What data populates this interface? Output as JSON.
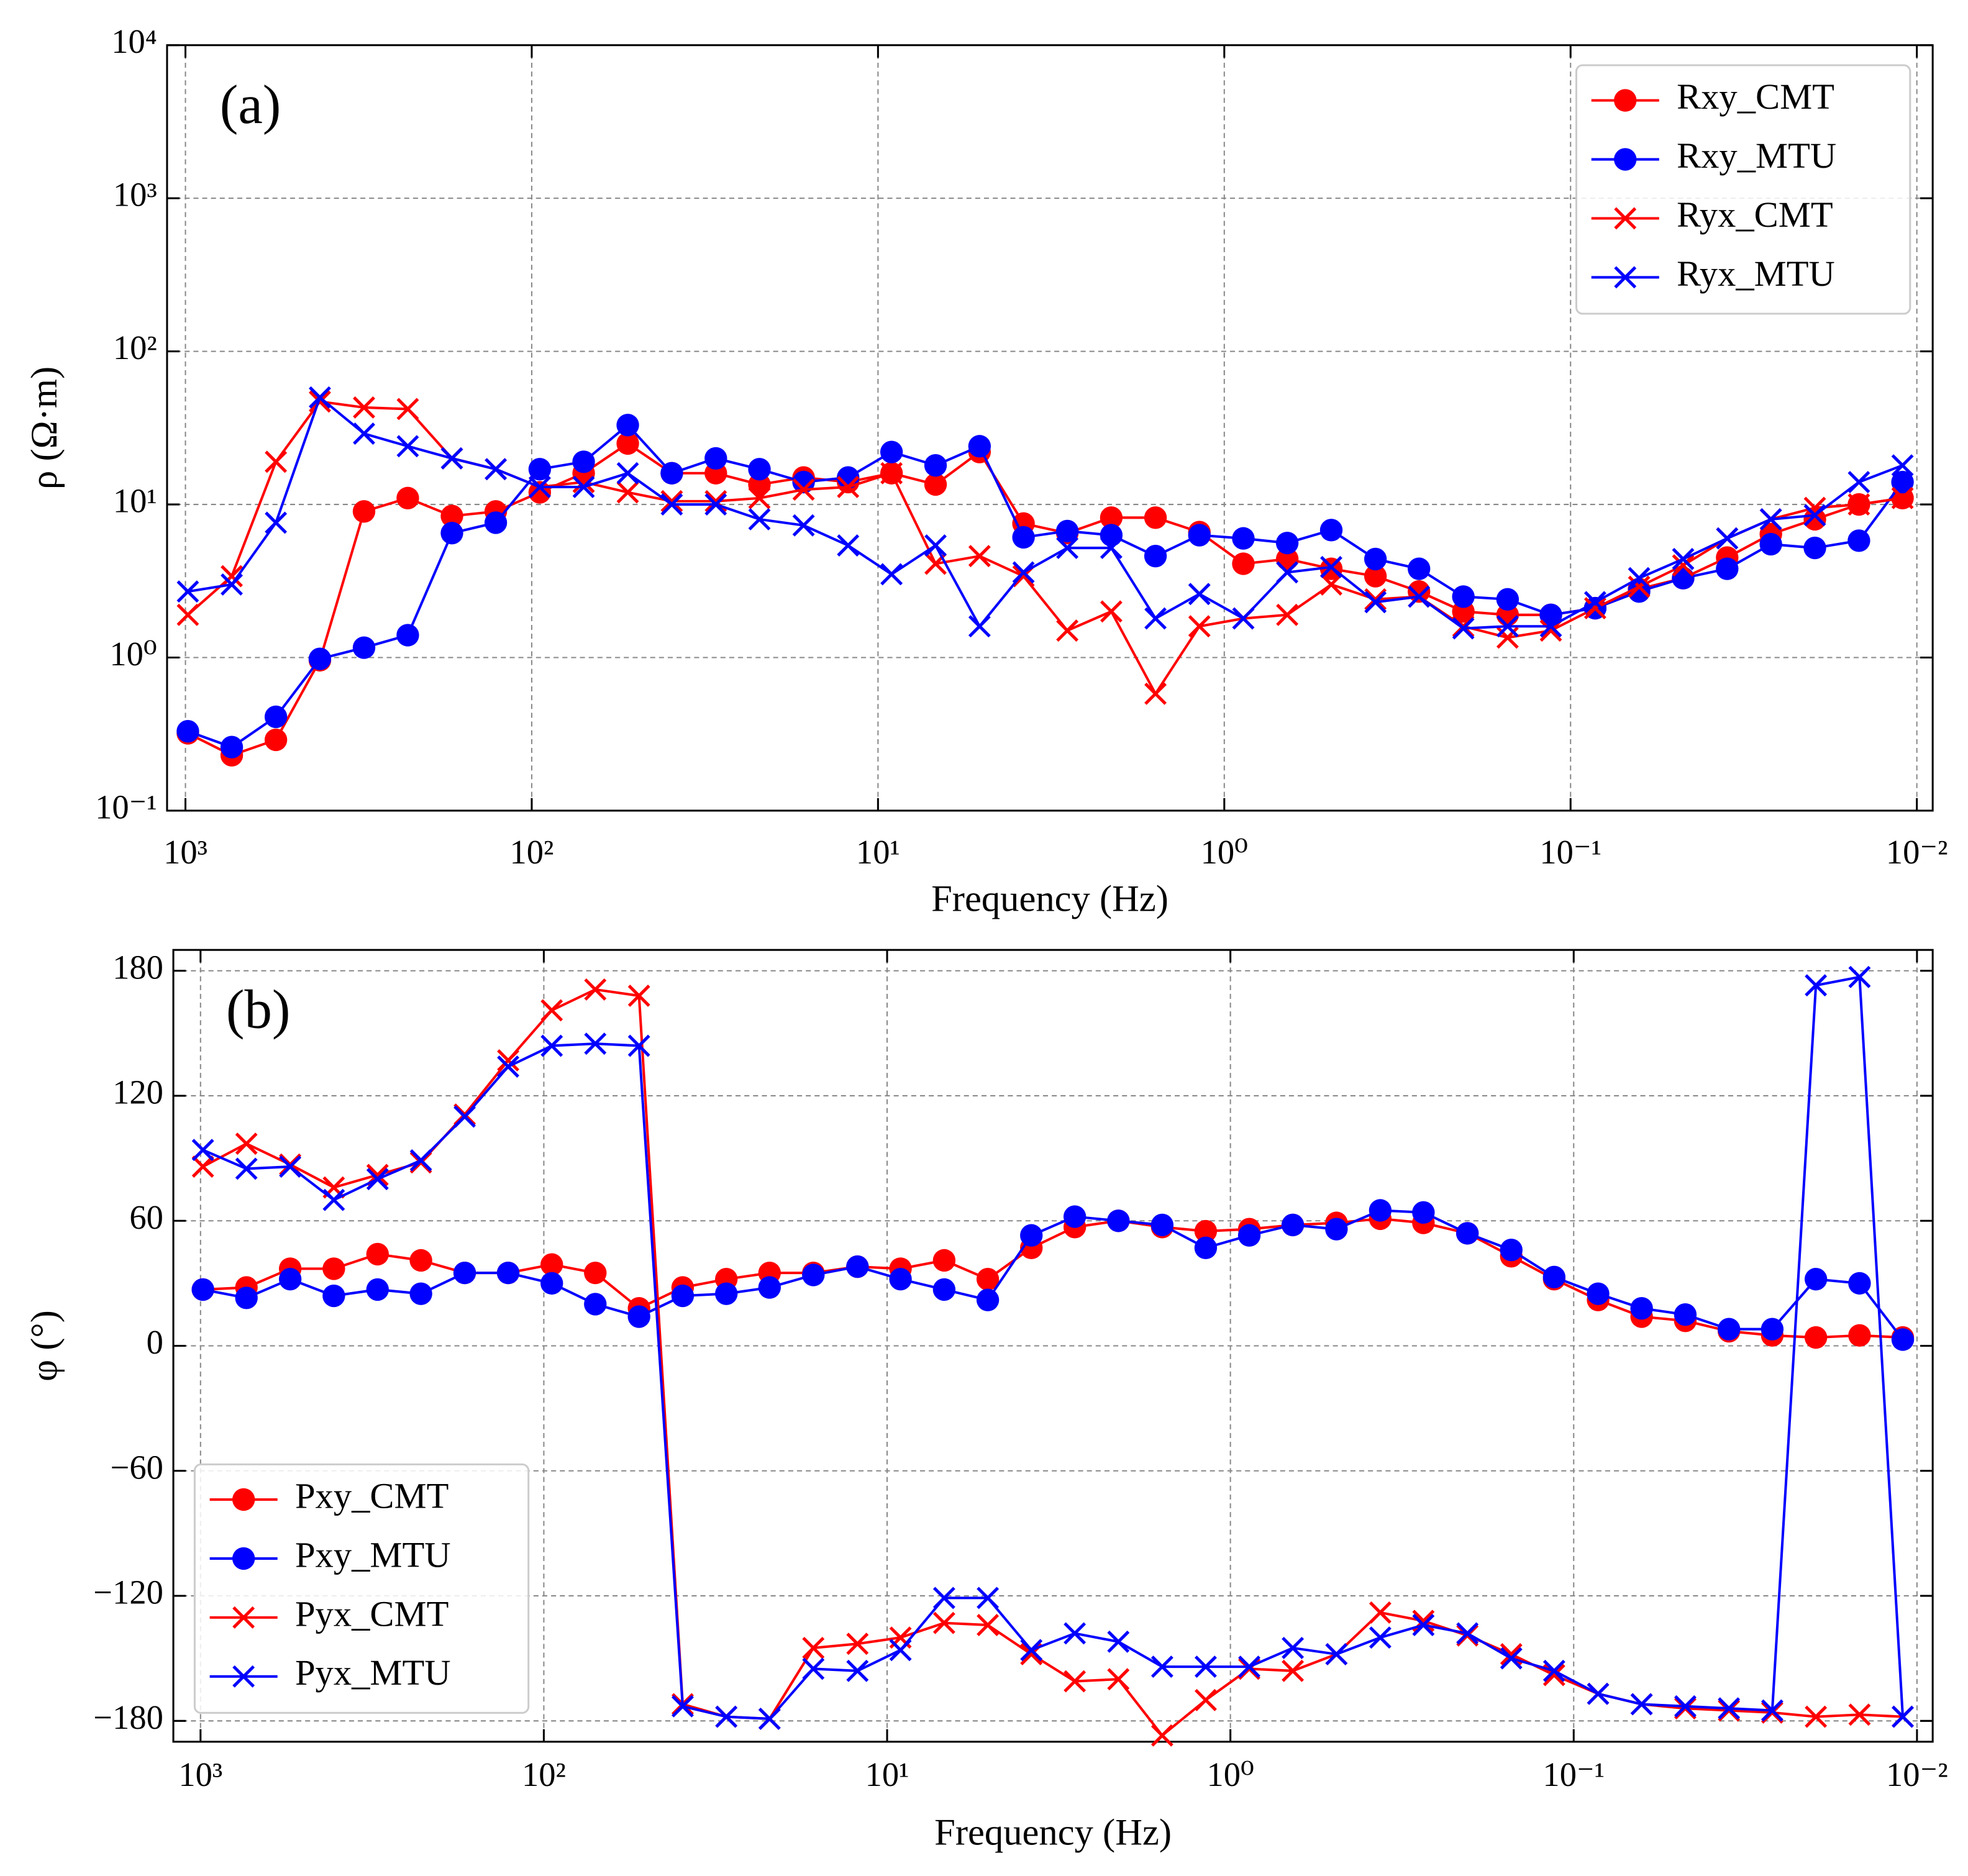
{
  "chart_data": [
    {
      "type": "line",
      "panel_label": "(a)",
      "xlabel": "Frequency (Hz)",
      "ylabel": "ρ (Ω·m)",
      "xscale": "log",
      "yscale": "log",
      "grid": true,
      "legend": "upper right",
      "xlim": [
        1130,
        0.009
      ],
      "ylim": [
        0.1,
        10000
      ],
      "xticks": [
        {
          "value": 1000,
          "label": "10³"
        },
        {
          "value": 100,
          "label": "10²"
        },
        {
          "value": 10,
          "label": "10¹"
        },
        {
          "value": 1,
          "label": "10⁰"
        },
        {
          "value": 0.1,
          "label": "10⁻¹"
        },
        {
          "value": 0.01,
          "label": "10⁻²"
        }
      ],
      "yticks": [
        {
          "value": 0.1,
          "label": "10⁻¹"
        },
        {
          "value": 1,
          "label": "10⁰"
        },
        {
          "value": 10,
          "label": "10¹"
        },
        {
          "value": 100,
          "label": "10²"
        },
        {
          "value": 1000,
          "label": "10³"
        },
        {
          "value": 10000,
          "label": "10⁴"
        }
      ],
      "x": [
        984,
        735,
        548,
        409,
        305,
        228,
        170,
        127,
        94.8,
        70.8,
        52.8,
        39.4,
        29.4,
        22.0,
        16.4,
        12.2,
        9.14,
        6.82,
        5.09,
        3.8,
        2.84,
        2.12,
        1.58,
        1.18,
        0.881,
        0.658,
        0.491,
        0.366,
        0.274,
        0.204,
        0.152,
        0.114,
        0.0849,
        0.0634,
        0.0473,
        0.0353,
        0.0264,
        0.0197,
        0.0147,
        0.011
      ],
      "series": [
        {
          "name": "Rxy_CMT",
          "color": "#ff0000",
          "marker": "o",
          "values": [
            0.32,
            0.23,
            0.29,
            0.96,
            9.0,
            11,
            8.4,
            9.0,
            12,
            16,
            25,
            16,
            16,
            13.5,
            15,
            14,
            16,
            13.5,
            22,
            7.5,
            6.5,
            8.2,
            8.2,
            6.6,
            4.1,
            4.4,
            3.8,
            3.4,
            2.7,
            2.0,
            1.9,
            1.9,
            2.1,
            2.8,
            3.3,
            4.5,
            6.4,
            8.0,
            10,
            11
          ]
        },
        {
          "name": "Rxy_MTU",
          "color": "#0000ff",
          "marker": "o",
          "values": [
            0.33,
            0.26,
            0.41,
            0.98,
            1.16,
            1.4,
            6.5,
            7.6,
            17,
            19,
            33,
            16,
            20,
            17,
            14,
            15,
            22,
            18,
            24,
            6.1,
            6.7,
            6.3,
            4.6,
            6.3,
            6.0,
            5.6,
            6.8,
            4.4,
            3.8,
            2.5,
            2.4,
            1.9,
            2.1,
            2.7,
            3.3,
            3.8,
            5.5,
            5.2,
            5.8,
            14
          ]
        },
        {
          "name": "Ryx_CMT",
          "color": "#ff0000",
          "marker": "x",
          "values": [
            1.9,
            3.4,
            19,
            47,
            43,
            42,
            20,
            17,
            13,
            14,
            12,
            10.5,
            10.5,
            11,
            12.5,
            13,
            16,
            4.1,
            4.6,
            3.4,
            1.5,
            2.0,
            0.58,
            1.6,
            1.8,
            1.9,
            3.0,
            2.4,
            2.5,
            1.6,
            1.35,
            1.5,
            2.1,
            2.9,
            4.0,
            6.0,
            8.0,
            9.5,
            10,
            11
          ]
        },
        {
          "name": "Ryx_MTU",
          "color": "#0000ff",
          "marker": "x",
          "values": [
            2.7,
            3.0,
            7.6,
            50,
            29,
            24,
            20,
            17,
            13,
            13,
            16,
            10,
            10,
            8,
            7.3,
            5.4,
            3.5,
            5.4,
            1.6,
            3.6,
            5.2,
            5.2,
            1.8,
            2.6,
            1.8,
            3.6,
            3.9,
            2.3,
            2.5,
            1.55,
            1.6,
            1.6,
            2.3,
            3.3,
            4.4,
            6.0,
            8.0,
            8.5,
            14,
            18
          ]
        }
      ]
    },
    {
      "type": "line",
      "panel_label": "(b)",
      "xlabel": "Frequency (Hz)",
      "ylabel": "φ (°)",
      "xscale": "log",
      "yscale": "linear",
      "grid": true,
      "legend": "lower left",
      "xlim": [
        1200,
        0.009
      ],
      "ylim": [
        -190,
        190
      ],
      "xticks": [
        {
          "value": 1000,
          "label": "10³"
        },
        {
          "value": 100,
          "label": "10²"
        },
        {
          "value": 10,
          "label": "10¹"
        },
        {
          "value": 1,
          "label": "10⁰"
        },
        {
          "value": 0.1,
          "label": "10⁻¹"
        },
        {
          "value": 0.01,
          "label": "10⁻²"
        }
      ],
      "yticks": [
        {
          "value": -180,
          "label": "−180"
        },
        {
          "value": -120,
          "label": "−120"
        },
        {
          "value": -60,
          "label": "−60"
        },
        0,
        60,
        120,
        180
      ],
      "x": [
        984,
        735,
        548,
        409,
        305,
        228,
        170,
        127,
        94.8,
        70.8,
        52.8,
        39.4,
        29.4,
        22.0,
        16.4,
        12.2,
        9.14,
        6.82,
        5.09,
        3.8,
        2.84,
        2.12,
        1.58,
        1.18,
        0.881,
        0.658,
        0.491,
        0.366,
        0.274,
        0.204,
        0.152,
        0.114,
        0.0849,
        0.0634,
        0.0473,
        0.0353,
        0.0264,
        0.0197,
        0.0147,
        0.011
      ],
      "series": [
        {
          "name": "Pxy_CMT",
          "color": "#ff0000",
          "marker": "o",
          "values": [
            27,
            28,
            37,
            37,
            44,
            41,
            35,
            35,
            39,
            35,
            18,
            28,
            32,
            35,
            35,
            38,
            37,
            41,
            32,
            47,
            57,
            60,
            57,
            55,
            56,
            58,
            59,
            61,
            59,
            54,
            43,
            32,
            22,
            14,
            12,
            7,
            5,
            4,
            5,
            4
          ]
        },
        {
          "name": "Pxy_MTU",
          "color": "#0000ff",
          "marker": "o",
          "values": [
            27,
            23,
            32,
            24,
            27,
            25,
            35,
            35,
            30,
            20,
            14,
            24,
            25,
            28,
            34,
            38,
            32,
            27,
            22,
            53,
            62,
            60,
            58,
            47,
            53,
            58,
            56,
            65,
            64,
            54,
            46,
            33,
            25,
            18,
            15,
            8,
            8,
            32,
            30,
            3
          ]
        },
        {
          "name": "Pyx_CMT",
          "color": "#ff0000",
          "marker": "x",
          "values": [
            86,
            97,
            87,
            76,
            82,
            88,
            111,
            137,
            161,
            171,
            168,
            -172,
            -178,
            -179,
            -145,
            -143,
            -140,
            -133,
            -134,
            -148,
            -161,
            -160,
            -187,
            -170,
            -155,
            -156,
            -148,
            -128,
            -132,
            -139,
            -148,
            -158,
            -167,
            -172,
            -174,
            -175,
            -176,
            -178,
            -177,
            -178
          ]
        },
        {
          "name": "Pyx_MTU",
          "color": "#0000ff",
          "marker": "x",
          "values": [
            94,
            85,
            86,
            70,
            80,
            89,
            110,
            134,
            144,
            145,
            144,
            -173,
            -178,
            -179,
            -155,
            -156,
            -146,
            -121,
            -121,
            -146,
            -138,
            -142,
            -154,
            -154,
            -154,
            -145,
            -148,
            -140,
            -134,
            -138,
            -150,
            -156,
            -167,
            -172,
            -173,
            -174,
            -175,
            173,
            177,
            -178
          ]
        }
      ]
    }
  ]
}
